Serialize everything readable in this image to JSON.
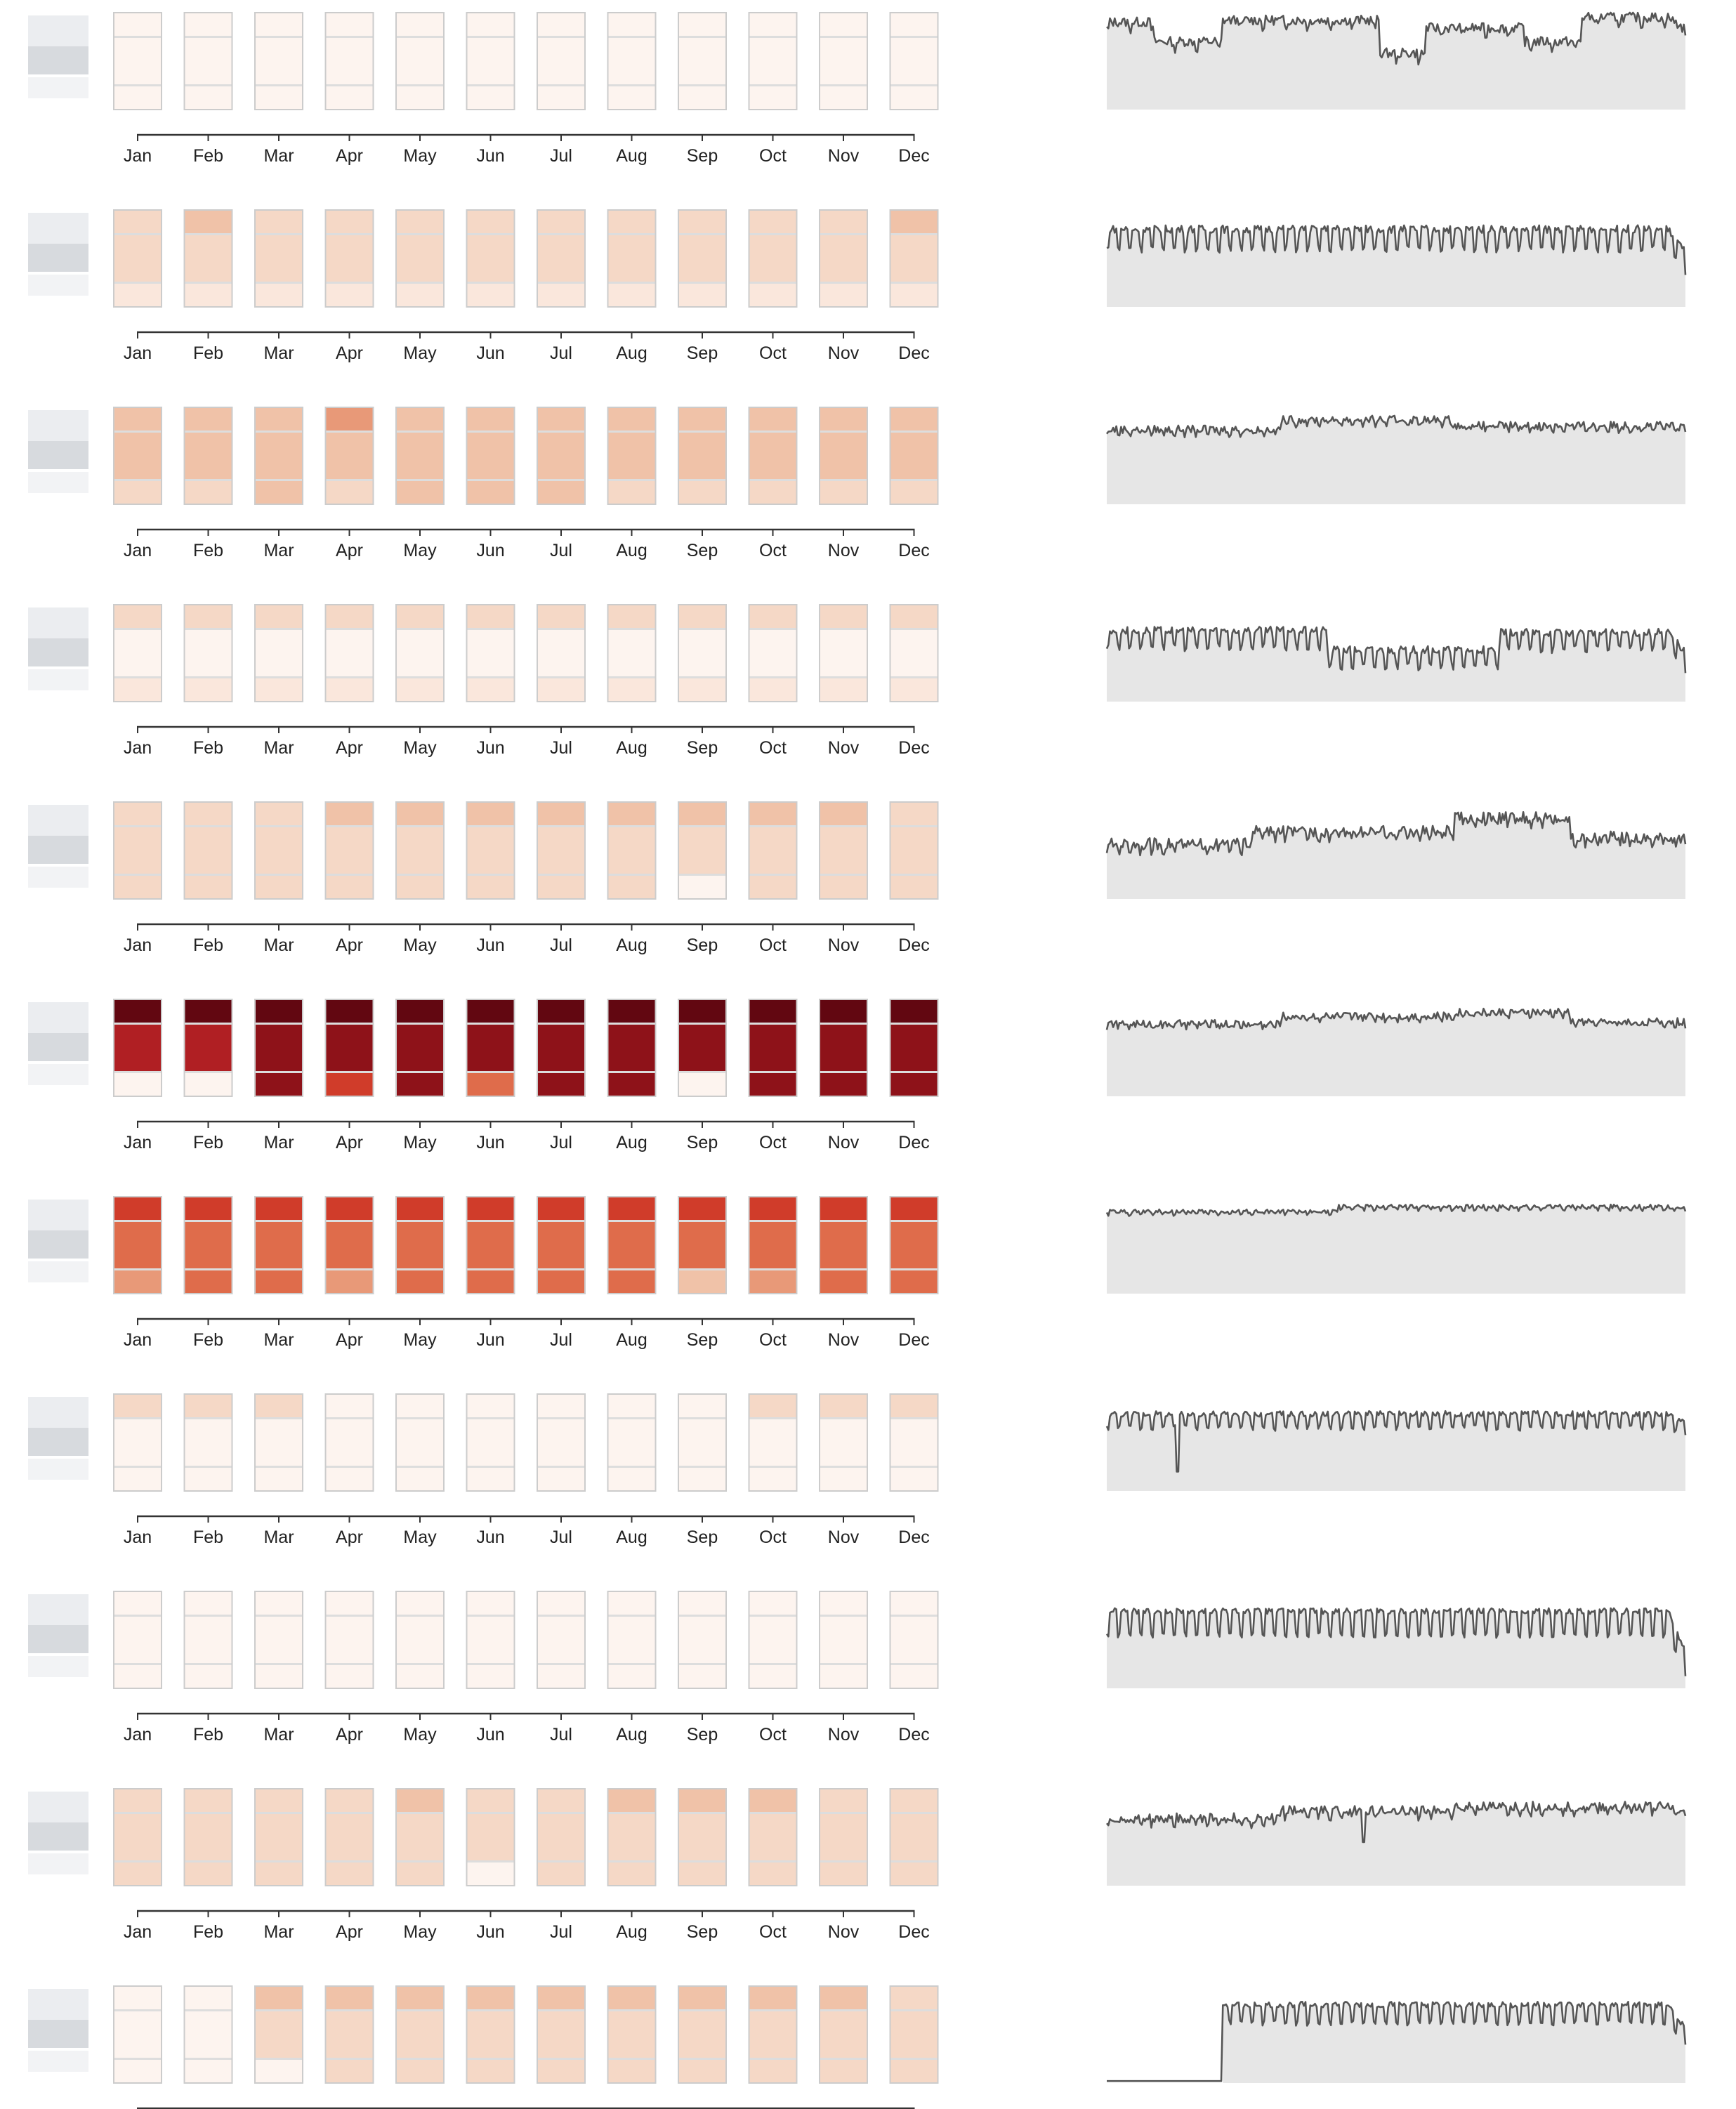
{
  "months": [
    "Jan",
    "Feb",
    "Mar",
    "Apr",
    "May",
    "Jun",
    "Jul",
    "Aug",
    "Sep",
    "Oct",
    "Nov",
    "Dec"
  ],
  "colors": {
    "background": "#ffffff",
    "cell_border": "#cccccc",
    "band_divider": "#dddddd",
    "axis": "#333333",
    "sparkline_fill": "#e6e6e6",
    "sparkline_stroke": "#555555",
    "row_label_blur": "#d7dade"
  },
  "color_scale": [
    "#fdf4ef",
    "#fae7dc",
    "#f5d8c6",
    "#f0c2a8",
    "#e89978",
    "#df6c4b",
    "#d03c2a",
    "#b01f23",
    "#8e1219",
    "#620711"
  ],
  "chart_data": {
    "type": "heatmap",
    "description_scale": "intensity index 0 (lightest) to 9 (darkest); each month cell has 3 vertical bands (top, middle, bottom); right side sparkline is relative 0-1 daily level",
    "title": "",
    "xlabel": "",
    "ylabel": "",
    "rows": [
      {
        "id": "r1",
        "cells": [
          [
            0,
            0,
            0
          ],
          [
            0,
            0,
            0
          ],
          [
            0,
            0,
            0
          ],
          [
            0,
            0,
            0
          ],
          [
            0,
            0,
            0
          ],
          [
            0,
            0,
            0
          ],
          [
            0,
            0,
            0
          ],
          [
            0,
            0,
            0
          ],
          [
            0,
            0,
            0
          ],
          [
            0,
            0,
            0
          ],
          [
            0,
            0,
            0
          ],
          [
            0,
            0,
            0
          ]
        ],
        "spark": {
          "base": 0.72,
          "amp": 0.05,
          "period": 14,
          "noise": 0.05,
          "plateaus": [
            [
              0,
              0.08,
              0.88
            ],
            [
              0.08,
              0.2,
              0.68
            ],
            [
              0.2,
              0.47,
              0.9
            ],
            [
              0.47,
              0.55,
              0.56
            ],
            [
              0.55,
              0.72,
              0.82
            ],
            [
              0.72,
              0.82,
              0.68
            ],
            [
              0.82,
              1,
              0.93
            ]
          ],
          "dips": [],
          "end": 0.8,
          "zero_until": 0
        }
      },
      {
        "id": "r2",
        "cells": [
          [
            2,
            2,
            1
          ],
          [
            3,
            2,
            1
          ],
          [
            2,
            2,
            1
          ],
          [
            2,
            2,
            1
          ],
          [
            2,
            2,
            1
          ],
          [
            2,
            2,
            1
          ],
          [
            2,
            2,
            1
          ],
          [
            2,
            2,
            1
          ],
          [
            2,
            2,
            1
          ],
          [
            2,
            2,
            1
          ],
          [
            2,
            2,
            1
          ],
          [
            3,
            2,
            1
          ]
        ],
        "spark": {
          "base": 0.74,
          "amp": 0.14,
          "period": 7,
          "noise": 0.04,
          "plateaus": [],
          "dips": [],
          "end": 0.5,
          "zero_until": 0
        }
      },
      {
        "id": "r3",
        "cells": [
          [
            3,
            3,
            2
          ],
          [
            3,
            3,
            2
          ],
          [
            3,
            3,
            3
          ],
          [
            4,
            3,
            2
          ],
          [
            3,
            3,
            3
          ],
          [
            3,
            3,
            3
          ],
          [
            3,
            3,
            3
          ],
          [
            3,
            3,
            2
          ],
          [
            3,
            3,
            2
          ],
          [
            3,
            3,
            2
          ],
          [
            3,
            3,
            2
          ],
          [
            3,
            3,
            2
          ]
        ],
        "spark": {
          "base": 0.8,
          "amp": 0.03,
          "period": 7,
          "noise": 0.04,
          "plateaus": [
            [
              0,
              0.3,
              0.76
            ],
            [
              0.3,
              0.6,
              0.86
            ],
            [
              0.6,
              1,
              0.8
            ]
          ],
          "dips": [],
          "end": 0.77,
          "zero_until": 0
        }
      },
      {
        "id": "r4",
        "cells": [
          [
            2,
            0,
            1
          ],
          [
            2,
            0,
            1
          ],
          [
            2,
            0,
            1
          ],
          [
            2,
            0,
            1
          ],
          [
            2,
            0,
            1
          ],
          [
            2,
            0,
            1
          ],
          [
            2,
            0,
            1
          ],
          [
            2,
            0,
            1
          ],
          [
            2,
            0,
            1
          ],
          [
            2,
            0,
            1
          ],
          [
            2,
            0,
            1
          ],
          [
            2,
            0,
            1
          ]
        ],
        "spark": {
          "base": 0.68,
          "amp": 0.12,
          "period": 7,
          "noise": 0.04,
          "plateaus": [
            [
              0,
              0.38,
              0.68
            ],
            [
              0.38,
              0.68,
              0.48
            ],
            [
              0.68,
              0.98,
              0.66
            ]
          ],
          "dips": [],
          "end": 0.45,
          "zero_until": 0
        }
      },
      {
        "id": "r5",
        "cells": [
          [
            2,
            2,
            2
          ],
          [
            2,
            2,
            2
          ],
          [
            2,
            2,
            2
          ],
          [
            3,
            2,
            2
          ],
          [
            3,
            2,
            2
          ],
          [
            3,
            2,
            2
          ],
          [
            3,
            2,
            2
          ],
          [
            3,
            2,
            2
          ],
          [
            3,
            2,
            0
          ],
          [
            3,
            2,
            2
          ],
          [
            3,
            2,
            2
          ],
          [
            2,
            2,
            2
          ]
        ],
        "spark": {
          "base": 0.6,
          "amp": 0.04,
          "period": 7,
          "noise": 0.06,
          "plateaus": [
            [
              0,
              0.25,
              0.55
            ],
            [
              0.25,
              0.6,
              0.68
            ],
            [
              0.6,
              0.8,
              0.82
            ],
            [
              0.8,
              1,
              0.62
            ]
          ],
          "dips": [],
          "end": 0.6,
          "zero_until": 0
        }
      },
      {
        "id": "r6",
        "cells": [
          [
            9,
            7,
            0
          ],
          [
            9,
            7,
            0
          ],
          [
            9,
            8,
            8
          ],
          [
            9,
            8,
            6
          ],
          [
            9,
            8,
            8
          ],
          [
            9,
            8,
            5
          ],
          [
            9,
            8,
            8
          ],
          [
            9,
            8,
            8
          ],
          [
            9,
            8,
            0
          ],
          [
            9,
            8,
            8
          ],
          [
            9,
            8,
            8
          ],
          [
            9,
            8,
            8
          ]
        ],
        "spark": {
          "base": 0.76,
          "amp": 0.02,
          "period": 7,
          "noise": 0.04,
          "plateaus": [
            [
              0,
              0.3,
              0.74
            ],
            [
              0.3,
              0.6,
              0.82
            ],
            [
              0.6,
              0.8,
              0.86
            ],
            [
              0.8,
              1,
              0.76
            ]
          ],
          "dips": [],
          "end": 0.76,
          "zero_until": 0
        }
      },
      {
        "id": "r7",
        "cells": [
          [
            6,
            5,
            4
          ],
          [
            6,
            5,
            5
          ],
          [
            6,
            5,
            5
          ],
          [
            6,
            5,
            4
          ],
          [
            6,
            5,
            5
          ],
          [
            6,
            5,
            5
          ],
          [
            6,
            5,
            5
          ],
          [
            6,
            5,
            5
          ],
          [
            6,
            5,
            3
          ],
          [
            6,
            5,
            4
          ],
          [
            6,
            5,
            5
          ],
          [
            6,
            5,
            5
          ]
        ],
        "spark": {
          "base": 0.86,
          "amp": 0.02,
          "period": 7,
          "noise": 0.02,
          "plateaus": [
            [
              0,
              0.4,
              0.84
            ],
            [
              0.4,
              1,
              0.89
            ]
          ],
          "dips": [],
          "end": 0.87,
          "zero_until": 0
        }
      },
      {
        "id": "r8",
        "cells": [
          [
            2,
            0,
            0
          ],
          [
            2,
            0,
            0
          ],
          [
            2,
            0,
            0
          ],
          [
            0,
            0,
            0
          ],
          [
            0,
            0,
            0
          ],
          [
            0,
            0,
            0
          ],
          [
            0,
            0,
            0
          ],
          [
            0,
            0,
            0
          ],
          [
            0,
            0,
            0
          ],
          [
            2,
            0,
            0
          ],
          [
            2,
            0,
            0
          ],
          [
            2,
            0,
            0
          ]
        ],
        "spark": {
          "base": 0.75,
          "amp": 0.1,
          "period": 7,
          "noise": 0.03,
          "plateaus": [],
          "dips": [
            [
              0.12,
              0.2
            ]
          ],
          "end": 0.65,
          "zero_until": 0
        }
      },
      {
        "id": "r9",
        "cells": [
          [
            0,
            0,
            0
          ],
          [
            0,
            0,
            0
          ],
          [
            0,
            0,
            0
          ],
          [
            0,
            0,
            0
          ],
          [
            0,
            0,
            0
          ],
          [
            0,
            0,
            0
          ],
          [
            0,
            0,
            0
          ],
          [
            0,
            0,
            0
          ],
          [
            0,
            0,
            0
          ],
          [
            0,
            0,
            0
          ],
          [
            0,
            0,
            0
          ],
          [
            0,
            0,
            0
          ]
        ],
        "spark": {
          "base": 0.72,
          "amp": 0.17,
          "period": 7,
          "noise": 0.03,
          "plateaus": [],
          "dips": [],
          "end": 0.3,
          "zero_until": 0
        }
      },
      {
        "id": "r10",
        "cells": [
          [
            2,
            2,
            2
          ],
          [
            2,
            2,
            2
          ],
          [
            2,
            2,
            2
          ],
          [
            2,
            2,
            2
          ],
          [
            3,
            2,
            2
          ],
          [
            2,
            2,
            0
          ],
          [
            2,
            2,
            2
          ],
          [
            3,
            2,
            2
          ],
          [
            3,
            2,
            2
          ],
          [
            3,
            2,
            2
          ],
          [
            2,
            2,
            2
          ],
          [
            2,
            2,
            2
          ]
        ],
        "spark": {
          "base": 0.72,
          "amp": 0.04,
          "period": 7,
          "noise": 0.05,
          "plateaus": [
            [
              0,
              0.3,
              0.68
            ],
            [
              0.3,
              0.6,
              0.76
            ],
            [
              0.6,
              1,
              0.8
            ]
          ],
          "dips": [
            [
              0.44,
              0.45
            ]
          ],
          "end": 0.72,
          "zero_until": 0
        }
      },
      {
        "id": "r11",
        "cells": [
          [
            0,
            0,
            0
          ],
          [
            0,
            0,
            0
          ],
          [
            3,
            2,
            0
          ],
          [
            3,
            2,
            2
          ],
          [
            3,
            2,
            2
          ],
          [
            3,
            2,
            2
          ],
          [
            3,
            2,
            2
          ],
          [
            3,
            2,
            2
          ],
          [
            3,
            2,
            2
          ],
          [
            3,
            2,
            2
          ],
          [
            3,
            2,
            2
          ],
          [
            2,
            2,
            2
          ]
        ],
        "spark": {
          "base": 0.75,
          "amp": 0.13,
          "period": 7,
          "noise": 0.03,
          "plateaus": [],
          "dips": [],
          "end": 0.5,
          "zero_until": 0.2
        }
      }
    ]
  }
}
